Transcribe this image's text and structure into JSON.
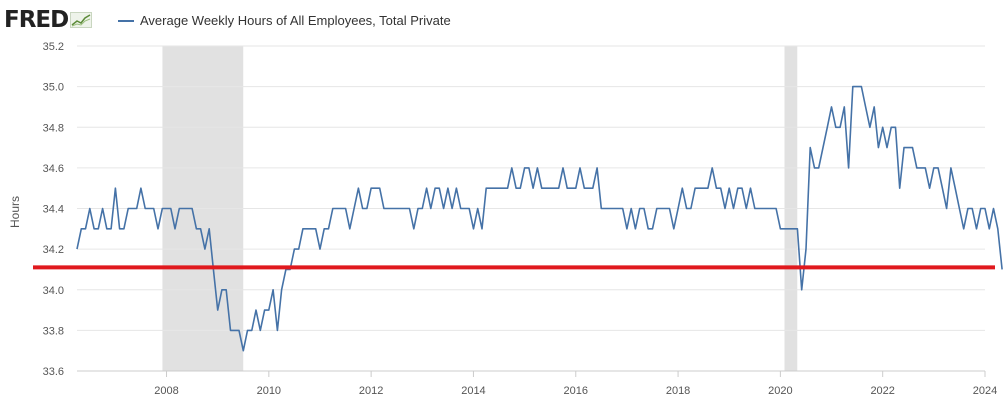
{
  "header": {
    "logo_text": "FRED",
    "logo_icon": "graph-trend-icon",
    "legend_label": "Average Weekly Hours of All Employees, Total Private",
    "series_color": "#4572a7"
  },
  "chart_data": {
    "type": "line",
    "title": "",
    "xlabel": "",
    "ylabel": "Hours",
    "xlim": [
      2006.25,
      2024.0
    ],
    "ylim": [
      33.6,
      35.2
    ],
    "x_ticks": [
      "2008",
      "2010",
      "2012",
      "2014",
      "2016",
      "2018",
      "2020",
      "2022",
      "2024"
    ],
    "y_ticks": [
      "33.6",
      "33.8",
      "34.0",
      "34.2",
      "34.4",
      "34.6",
      "34.8",
      "35.0",
      "35.2"
    ],
    "grid": "horizontal",
    "recessions": [
      [
        2007.92,
        2009.5
      ],
      [
        2020.08,
        2020.33
      ]
    ],
    "reference_line": {
      "y": 34.11,
      "color": "#e0191e"
    },
    "series": [
      {
        "name": "Average Weekly Hours of All Employees, Total Private",
        "color": "#4572a7",
        "start": 2006.25,
        "step_months": 1,
        "values": [
          34.2,
          34.3,
          34.3,
          34.4,
          34.3,
          34.3,
          34.4,
          34.3,
          34.3,
          34.5,
          34.3,
          34.3,
          34.4,
          34.4,
          34.4,
          34.5,
          34.4,
          34.4,
          34.4,
          34.3,
          34.4,
          34.4,
          34.4,
          34.3,
          34.4,
          34.4,
          34.4,
          34.4,
          34.3,
          34.3,
          34.2,
          34.3,
          34.1,
          33.9,
          34.0,
          34.0,
          33.8,
          33.8,
          33.8,
          33.7,
          33.8,
          33.8,
          33.9,
          33.8,
          33.9,
          33.9,
          34.0,
          33.8,
          34.0,
          34.1,
          34.1,
          34.2,
          34.2,
          34.3,
          34.3,
          34.3,
          34.3,
          34.2,
          34.3,
          34.3,
          34.4,
          34.4,
          34.4,
          34.4,
          34.3,
          34.4,
          34.5,
          34.4,
          34.4,
          34.5,
          34.5,
          34.5,
          34.4,
          34.4,
          34.4,
          34.4,
          34.4,
          34.4,
          34.4,
          34.3,
          34.4,
          34.4,
          34.5,
          34.4,
          34.5,
          34.5,
          34.4,
          34.5,
          34.4,
          34.5,
          34.4,
          34.4,
          34.4,
          34.3,
          34.4,
          34.3,
          34.5,
          34.5,
          34.5,
          34.5,
          34.5,
          34.5,
          34.6,
          34.5,
          34.5,
          34.6,
          34.6,
          34.5,
          34.6,
          34.5,
          34.5,
          34.5,
          34.5,
          34.5,
          34.6,
          34.5,
          34.5,
          34.5,
          34.6,
          34.5,
          34.5,
          34.5,
          34.6,
          34.4,
          34.4,
          34.4,
          34.4,
          34.4,
          34.4,
          34.3,
          34.4,
          34.3,
          34.4,
          34.4,
          34.3,
          34.3,
          34.4,
          34.4,
          34.4,
          34.4,
          34.3,
          34.4,
          34.5,
          34.4,
          34.4,
          34.5,
          34.5,
          34.5,
          34.5,
          34.6,
          34.5,
          34.5,
          34.4,
          34.5,
          34.4,
          34.5,
          34.5,
          34.4,
          34.5,
          34.4,
          34.4,
          34.4,
          34.4,
          34.4,
          34.4,
          34.3,
          34.3,
          34.3,
          34.3,
          34.3,
          34.0,
          34.2,
          34.7,
          34.6,
          34.6,
          34.7,
          34.8,
          34.9,
          34.8,
          34.8,
          34.9,
          34.6,
          35.0,
          35.0,
          35.0,
          34.9,
          34.8,
          34.9,
          34.7,
          34.8,
          34.7,
          34.8,
          34.8,
          34.5,
          34.7,
          34.7,
          34.7,
          34.6,
          34.6,
          34.6,
          34.5,
          34.6,
          34.6,
          34.5,
          34.4,
          34.6,
          34.5,
          34.4,
          34.3,
          34.4,
          34.4,
          34.3,
          34.4,
          34.4,
          34.3,
          34.4,
          34.3,
          34.1
        ]
      }
    ]
  }
}
